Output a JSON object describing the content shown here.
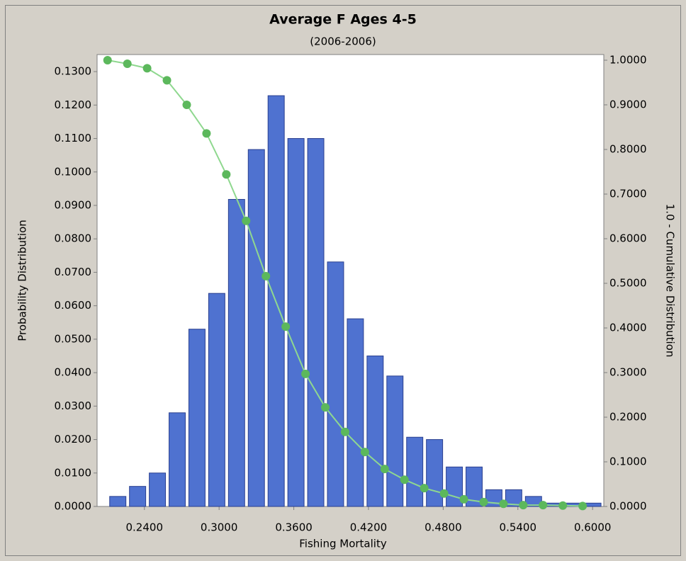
{
  "chart_data": {
    "type": "histogram",
    "title": "Average F Ages 4-5",
    "subtitle": "(2006-2006)",
    "xlabel": "Fishing Mortality",
    "ylabel": "Probability Distribution",
    "y2label": "1.0 - Cumulative Distribution",
    "bins": [
      0.2104,
      0.2263,
      0.2422,
      0.2581,
      0.274,
      0.2899,
      0.3058,
      0.3217,
      0.3376,
      0.3535,
      0.3694,
      0.3853,
      0.4012,
      0.4171,
      0.433,
      0.4489,
      0.4648,
      0.4807,
      0.4966,
      0.5125,
      0.5284,
      0.5443,
      0.5602,
      0.5761,
      0.592,
      0.6079
    ],
    "counts": [
      0.003,
      0.006,
      0.01,
      0.028,
      0.053,
      0.0637,
      0.0918,
      0.1067,
      0.1228,
      0.11,
      0.11,
      0.0731,
      0.0561,
      0.045,
      0.039,
      0.0207,
      0.02,
      0.0118,
      0.0118,
      0.005,
      0.005,
      0.003,
      0.001,
      0.001,
      0.001
    ],
    "color": "#4f72d0",
    "line": {
      "type": "line",
      "axis": "y2",
      "color": "#8fd88f",
      "marker_color": "#5cb85c",
      "x": [
        0.2104,
        0.2263,
        0.2422,
        0.2581,
        0.274,
        0.2899,
        0.3058,
        0.3217,
        0.3376,
        0.3535,
        0.3694,
        0.3853,
        0.4012,
        0.4171,
        0.433,
        0.4489,
        0.4648,
        0.4807,
        0.4966,
        0.5125,
        0.5284,
        0.5443,
        0.5602,
        0.5761,
        0.592
      ],
      "values": [
        1.0,
        0.992,
        0.982,
        0.955,
        0.9,
        0.836,
        0.744,
        0.64,
        0.516,
        0.403,
        0.297,
        0.222,
        0.167,
        0.122,
        0.084,
        0.06,
        0.041,
        0.029,
        0.016,
        0.01,
        0.006,
        0.003,
        0.003,
        0.002,
        0.001
      ]
    },
    "xlim": [
      0.202,
      0.609
    ],
    "ylim": [
      0,
      0.1351
    ],
    "y2lim": [
      0,
      1.0127
    ],
    "xticks": [
      {
        "value": 0.24,
        "label": "0.2400"
      },
      {
        "value": 0.3,
        "label": "0.3000"
      },
      {
        "value": 0.36,
        "label": "0.3600"
      },
      {
        "value": 0.42,
        "label": "0.4200"
      },
      {
        "value": 0.48,
        "label": "0.4800"
      },
      {
        "value": 0.54,
        "label": "0.5400"
      },
      {
        "value": 0.6,
        "label": "0.6000"
      }
    ],
    "yticks": [
      {
        "value": 0,
        "label": "0.0000"
      },
      {
        "value": 0.01,
        "label": "0.0100"
      },
      {
        "value": 0.02,
        "label": "0.0200"
      },
      {
        "value": 0.03,
        "label": "0.0300"
      },
      {
        "value": 0.04,
        "label": "0.0400"
      },
      {
        "value": 0.05,
        "label": "0.0500"
      },
      {
        "value": 0.06,
        "label": "0.0600"
      },
      {
        "value": 0.07,
        "label": "0.0700"
      },
      {
        "value": 0.08,
        "label": "0.0800"
      },
      {
        "value": 0.09,
        "label": "0.0900"
      },
      {
        "value": 0.1,
        "label": "0.1000"
      },
      {
        "value": 0.11,
        "label": "0.1100"
      },
      {
        "value": 0.12,
        "label": "0.1200"
      },
      {
        "value": 0.13,
        "label": "0.1300"
      }
    ],
    "y2ticks": [
      {
        "value": 0,
        "label": "0.0000"
      },
      {
        "value": 0.1,
        "label": "0.1000"
      },
      {
        "value": 0.2,
        "label": "0.2000"
      },
      {
        "value": 0.3,
        "label": "0.3000"
      },
      {
        "value": 0.4,
        "label": "0.4000"
      },
      {
        "value": 0.5,
        "label": "0.5000"
      },
      {
        "value": 0.6,
        "label": "0.6000"
      },
      {
        "value": 0.7,
        "label": "0.7000"
      },
      {
        "value": 0.8,
        "label": "0.8000"
      },
      {
        "value": 0.9,
        "label": "0.9000"
      },
      {
        "value": 1.0,
        "label": "1.0000"
      }
    ]
  }
}
